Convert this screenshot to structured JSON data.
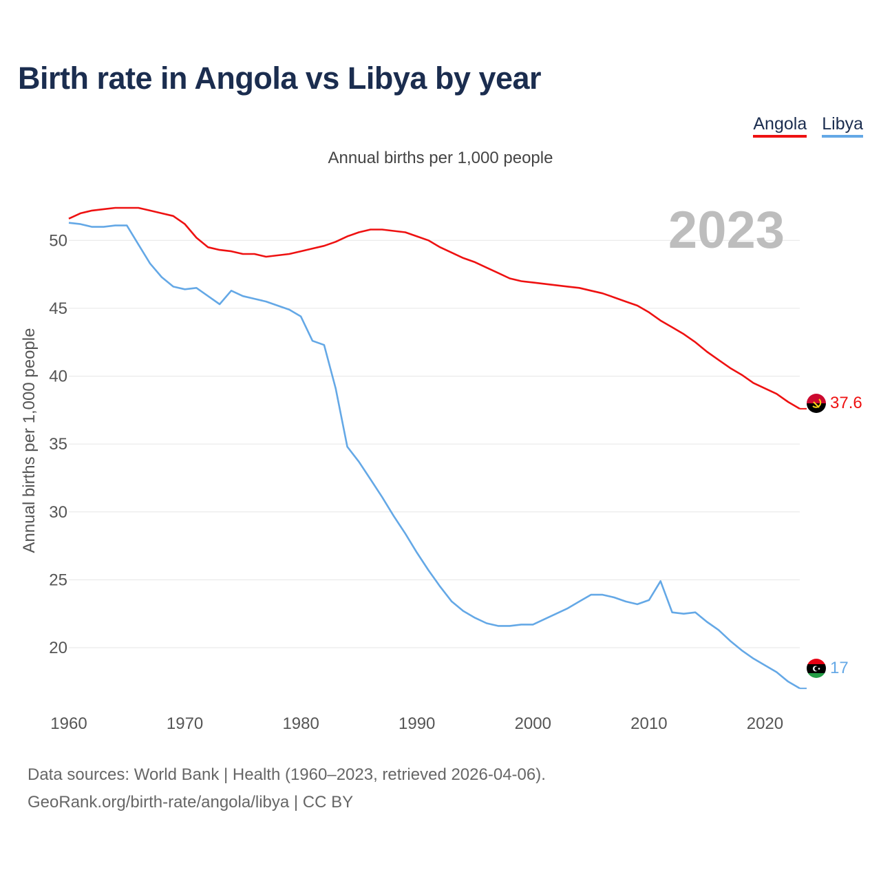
{
  "title": "Birth rate in Angola vs Libya by year",
  "subtitle": "Annual births per 1,000 people",
  "legend": [
    {
      "label": "Angola",
      "color": "#ee1111"
    },
    {
      "label": "Libya",
      "color": "#64a8e6"
    }
  ],
  "footer": {
    "line1": "Data sources: World Bank | Health (1960–2023, retrieved 2026-04-06).",
    "line2": "GeoRank.org/birth-rate/angola/libya | CC BY"
  },
  "chart_data": {
    "type": "line",
    "title": "Birth rate in Angola vs Libya by year",
    "ylabel": "Annual births per 1,000 people",
    "xlabel": "",
    "year_label": "2023",
    "xlim": [
      1960,
      2023
    ],
    "ylim": [
      16.5,
      52.5
    ],
    "x_ticks": [
      1960,
      1970,
      1980,
      1990,
      2000,
      2010,
      2020
    ],
    "y_ticks": [
      20,
      25,
      30,
      35,
      40,
      45,
      50
    ],
    "x": [
      1960,
      1961,
      1962,
      1963,
      1964,
      1965,
      1966,
      1967,
      1968,
      1969,
      1970,
      1971,
      1972,
      1973,
      1974,
      1975,
      1976,
      1977,
      1978,
      1979,
      1980,
      1981,
      1982,
      1983,
      1984,
      1985,
      1986,
      1987,
      1988,
      1989,
      1990,
      1991,
      1992,
      1993,
      1994,
      1995,
      1996,
      1997,
      1998,
      1999,
      2000,
      2001,
      2002,
      2003,
      2004,
      2005,
      2006,
      2007,
      2008,
      2009,
      2010,
      2011,
      2012,
      2013,
      2014,
      2015,
      2016,
      2017,
      2018,
      2019,
      2020,
      2021,
      2022,
      2023
    ],
    "series": [
      {
        "name": "Angola",
        "color": "#ee1111",
        "end_label": "37.6",
        "values": [
          51.6,
          52.0,
          52.2,
          52.3,
          52.4,
          52.4,
          52.4,
          52.2,
          52.0,
          51.8,
          51.2,
          50.2,
          49.5,
          49.3,
          49.2,
          49.0,
          49.0,
          48.8,
          48.9,
          49.0,
          49.2,
          49.4,
          49.6,
          49.9,
          50.3,
          50.6,
          50.8,
          50.8,
          50.7,
          50.6,
          50.3,
          50.0,
          49.5,
          49.1,
          48.7,
          48.4,
          48.0,
          47.6,
          47.2,
          47.0,
          46.9,
          46.8,
          46.7,
          46.6,
          46.5,
          46.3,
          46.1,
          45.8,
          45.5,
          45.2,
          44.7,
          44.1,
          43.6,
          43.1,
          42.5,
          41.8,
          41.2,
          40.6,
          40.1,
          39.5,
          39.1,
          38.7,
          38.1,
          37.6
        ]
      },
      {
        "name": "Libya",
        "color": "#64a8e6",
        "end_label": "17",
        "values": [
          51.3,
          51.2,
          51.0,
          51.0,
          51.1,
          51.1,
          49.7,
          48.3,
          47.3,
          46.6,
          46.4,
          46.5,
          45.9,
          45.3,
          46.3,
          45.9,
          45.7,
          45.5,
          45.2,
          44.9,
          44.4,
          42.6,
          42.3,
          39.1,
          34.8,
          33.7,
          32.4,
          31.1,
          29.7,
          28.4,
          27.0,
          25.7,
          24.5,
          23.4,
          22.7,
          22.2,
          21.8,
          21.6,
          21.6,
          21.7,
          21.7,
          22.1,
          22.5,
          22.9,
          23.4,
          23.9,
          23.9,
          23.7,
          23.4,
          23.2,
          23.5,
          24.9,
          22.6,
          22.5,
          22.6,
          21.9,
          21.3,
          20.5,
          19.8,
          19.2,
          18.7,
          18.2,
          17.5,
          17.0
        ]
      }
    ]
  }
}
